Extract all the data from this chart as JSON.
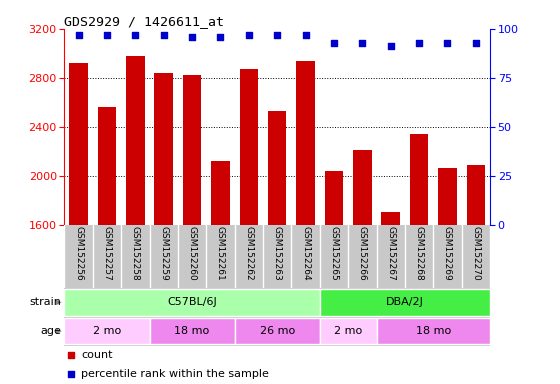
{
  "title": "GDS2929 / 1426611_at",
  "samples": [
    "GSM152256",
    "GSM152257",
    "GSM152258",
    "GSM152259",
    "GSM152260",
    "GSM152261",
    "GSM152262",
    "GSM152263",
    "GSM152264",
    "GSM152265",
    "GSM152266",
    "GSM152267",
    "GSM152268",
    "GSM152269",
    "GSM152270"
  ],
  "counts": [
    2920,
    2560,
    2980,
    2840,
    2820,
    2120,
    2870,
    2530,
    2940,
    2040,
    2210,
    1700,
    2340,
    2060,
    2090
  ],
  "percentile_ranks": [
    97,
    97,
    97,
    97,
    96,
    96,
    97,
    97,
    97,
    93,
    93,
    91,
    93,
    93,
    93
  ],
  "ylim_left": [
    1600,
    3200
  ],
  "ylim_right": [
    0,
    100
  ],
  "yticks_left": [
    1600,
    2000,
    2400,
    2800,
    3200
  ],
  "yticks_right": [
    0,
    25,
    50,
    75,
    100
  ],
  "bar_color": "#cc0000",
  "dot_color": "#0000cc",
  "background_plot": "#ffffff",
  "xlabel_bg": "#c8c8c8",
  "strain_groups": [
    {
      "label": "C57BL/6J",
      "start": 0,
      "end": 9,
      "color": "#aaffaa"
    },
    {
      "label": "DBA/2J",
      "start": 9,
      "end": 15,
      "color": "#44ee44"
    }
  ],
  "age_groups": [
    {
      "label": "2 mo",
      "start": 0,
      "end": 3,
      "color": "#ffccff"
    },
    {
      "label": "18 mo",
      "start": 3,
      "end": 6,
      "color": "#ee88ee"
    },
    {
      "label": "26 mo",
      "start": 6,
      "end": 9,
      "color": "#ee88ee"
    },
    {
      "label": "2 mo",
      "start": 9,
      "end": 11,
      "color": "#ffccff"
    },
    {
      "label": "18 mo",
      "start": 11,
      "end": 15,
      "color": "#ee88ee"
    }
  ],
  "legend_count_color": "#cc0000",
  "legend_pct_color": "#0000cc",
  "bar_width": 0.65
}
